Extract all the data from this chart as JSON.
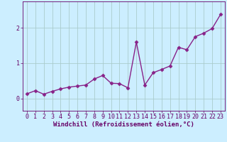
{
  "x": [
    0,
    1,
    2,
    3,
    4,
    5,
    6,
    7,
    8,
    9,
    10,
    11,
    12,
    13,
    14,
    15,
    16,
    17,
    18,
    19,
    20,
    21,
    22,
    23
  ],
  "y": [
    0.13,
    0.22,
    0.12,
    0.2,
    0.27,
    0.32,
    0.35,
    0.38,
    0.55,
    0.65,
    0.43,
    0.42,
    0.3,
    1.6,
    0.38,
    0.73,
    0.82,
    0.92,
    1.45,
    1.38,
    1.75,
    1.85,
    1.98,
    2.38
  ],
  "line_color": "#882288",
  "marker": "D",
  "marker_size": 2.5,
  "line_width": 1.0,
  "bg_color": "#cceeff",
  "grid_color": "#aacccc",
  "xlabel": "Windchill (Refroidissement éolien,°C)",
  "xlim": [
    -0.5,
    23.5
  ],
  "ylim": [
    -0.35,
    2.75
  ],
  "yticks": [
    0,
    1,
    2
  ],
  "xticks": [
    0,
    1,
    2,
    3,
    4,
    5,
    6,
    7,
    8,
    9,
    10,
    11,
    12,
    13,
    14,
    15,
    16,
    17,
    18,
    19,
    20,
    21,
    22,
    23
  ],
  "xlabel_fontsize": 6.5,
  "tick_fontsize": 6.0,
  "text_color": "#660066"
}
